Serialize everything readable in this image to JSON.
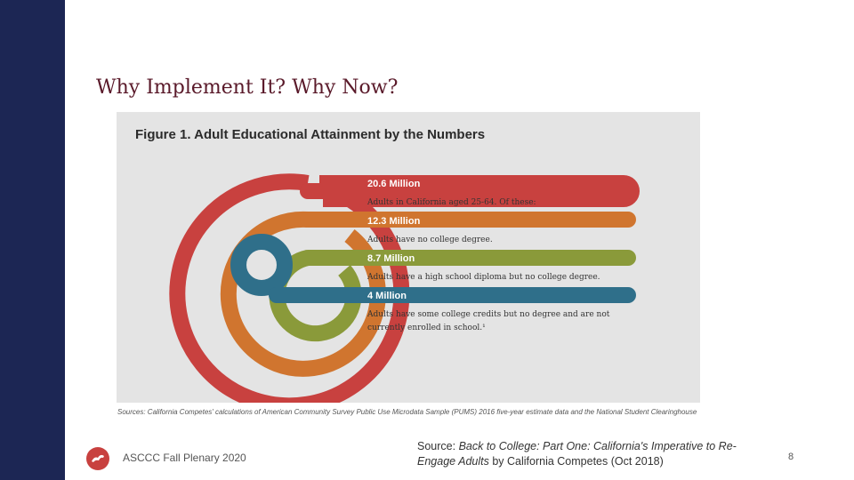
{
  "slide": {
    "title": "Why Implement It? Why Now?",
    "page_number": "8",
    "footer_left": "ASCCC Fall Plenary 2020"
  },
  "footer_source": {
    "prefix": "Source: ",
    "title_italic": "Back to College: Part One: California's Imperative to Re-Engage Adults",
    "suffix": " by California Competes (Oct 2018)"
  },
  "figure": {
    "title": "Figure 1. Adult Educational Attainment by the Numbers",
    "sources": "Sources: California Competes' calculations of American Community Survey Public Use Microdata Sample (PUMS) 2016 five-year estimate data and the National Student Clearinghouse",
    "rings": [
      {
        "value": "20.6 Million",
        "desc": "Adults in California aged 25-64. Of these:",
        "color": "#c8413f"
      },
      {
        "value": "12.3 Million",
        "desc": "Adults have no college degree.",
        "color": "#d0752f"
      },
      {
        "value": "8.7 Million",
        "desc": "Adults have a high school diploma but no college degree.",
        "color": "#8a9a3a"
      },
      {
        "value": "4 Million",
        "desc_line1": "Adults have some college credits but no degree and are not",
        "desc_line2": "currently enrolled in school.¹",
        "color": "#2f6f8a"
      }
    ]
  },
  "colors": {
    "sidebar": "#1c2654",
    "title": "#5a1a2a",
    "logo": "#c8413f"
  },
  "icons": {
    "logo": "ascccc-logo-icon"
  }
}
